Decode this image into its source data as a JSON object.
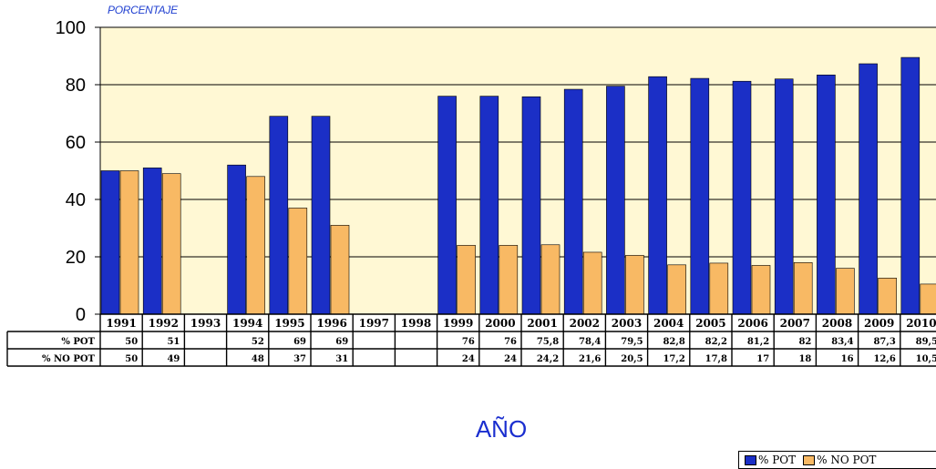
{
  "chart_data": {
    "type": "bar",
    "ylabel": "PORCENTAJE",
    "xlabel": "AÑO",
    "ylim": [
      0,
      100
    ],
    "yticks": [
      "0",
      "20",
      "40",
      "60",
      "80",
      "100"
    ],
    "grid": true,
    "legend_position": "bottom-right",
    "categories": [
      "1991",
      "1992",
      "1993",
      "1994",
      "1995",
      "1996",
      "1997",
      "1998",
      "1999",
      "2000",
      "2001",
      "2002",
      "2003",
      "2004",
      "2005",
      "2006",
      "2007",
      "2008",
      "2009",
      "2010"
    ],
    "series": [
      {
        "name": "% POT",
        "color": "#1b2fc6",
        "values": [
          50,
          51,
          null,
          52,
          69,
          69,
          null,
          null,
          76,
          76,
          75.8,
          78.4,
          79.5,
          82.8,
          82.2,
          81.2,
          82,
          83.4,
          87.3,
          89.5
        ],
        "labels": [
          "50",
          "51",
          "",
          "52",
          "69",
          "69",
          "",
          "",
          "76",
          "76",
          "75,8",
          "78,4",
          "79,5",
          "82,8",
          "82,2",
          "81,2",
          "82",
          "83,4",
          "87,3",
          "89,5"
        ]
      },
      {
        "name": "% NO POT",
        "color": "#f8b964",
        "values": [
          50,
          49,
          null,
          48,
          37,
          31,
          null,
          null,
          24,
          24,
          24.2,
          21.6,
          20.5,
          17.2,
          17.8,
          17,
          18,
          16,
          12.6,
          10.5
        ],
        "labels": [
          "50",
          "49",
          "",
          "48",
          "37",
          "31",
          "",
          "",
          "24",
          "24",
          "24,2",
          "21,6",
          "20,5",
          "17,2",
          "17,8",
          "17",
          "18",
          "16",
          "12,6",
          "10,5"
        ]
      }
    ]
  },
  "colors": {
    "plot_background": "#fff8d4",
    "pot": "#1b2fc6",
    "no_pot": "#f8b964",
    "axis_title": "#1a2ecf"
  }
}
